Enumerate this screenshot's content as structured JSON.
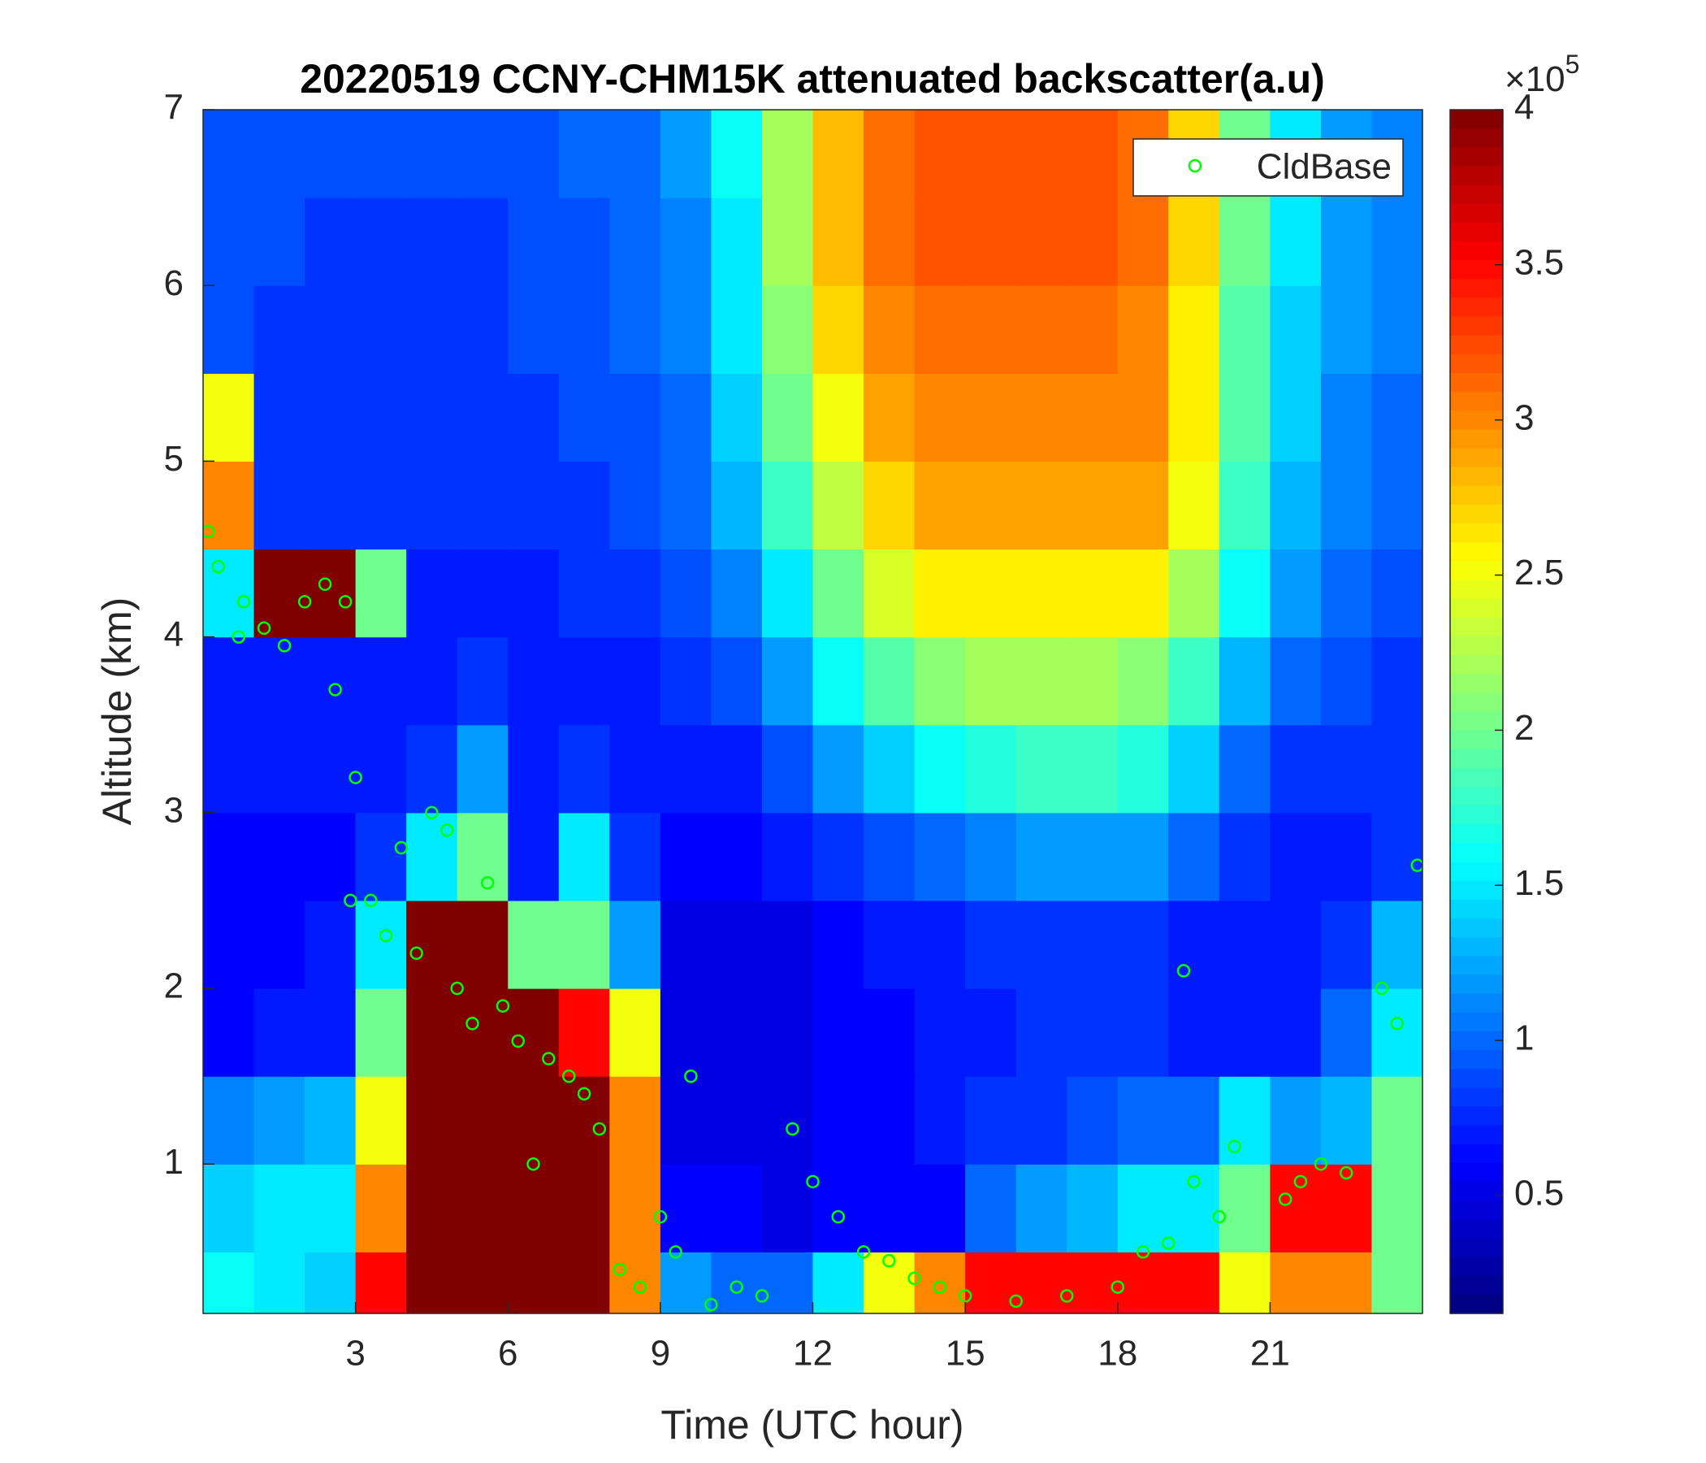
{
  "chart_data": {
    "type": "heatmap",
    "title": "20220519 CCNY-CHM15K attenuated backscatter(a.u)",
    "xlabel": "Time (UTC hour)",
    "ylabel": "Altitude (km)",
    "x": [
      0.5,
      1.5,
      2.5,
      3.5,
      4.5,
      5.5,
      6.5,
      7.5,
      8.5,
      9.5,
      10.5,
      11.5,
      12.5,
      13.5,
      14.5,
      15.5,
      16.5,
      17.5,
      18.5,
      19.5,
      20.5,
      21.5,
      22.5,
      23.5
    ],
    "y": [
      0.25,
      0.75,
      1.25,
      1.75,
      2.25,
      2.75,
      3.25,
      3.75,
      4.25,
      4.75,
      5.25,
      5.75,
      6.25,
      6.75
    ],
    "z": [
      [
        1.6,
        1.5,
        1.4,
        3.5,
        4,
        4,
        4,
        4,
        3,
        1.2,
        1,
        1,
        1.5,
        2.5,
        3,
        3.5,
        3.5,
        3.5,
        3.5,
        3.5,
        2.5,
        3,
        3,
        2
      ],
      [
        1.4,
        1.5,
        1.5,
        3,
        4,
        4,
        4,
        4,
        3,
        0.6,
        0.6,
        0.5,
        0.6,
        0.6,
        0.6,
        1,
        1.2,
        1.3,
        1.5,
        1.5,
        2,
        3.5,
        3.5,
        2
      ],
      [
        1.1,
        1.2,
        1.3,
        2.5,
        4,
        4,
        4,
        4,
        3,
        0.5,
        0.5,
        0.5,
        0.6,
        0.6,
        0.7,
        0.8,
        0.8,
        0.9,
        1,
        1,
        1.5,
        1.2,
        1.3,
        2
      ],
      [
        0.6,
        0.7,
        0.7,
        2,
        4,
        4,
        4,
        3.5,
        2.5,
        0.5,
        0.5,
        0.5,
        0.6,
        0.6,
        0.7,
        0.7,
        0.8,
        0.8,
        0.8,
        0.7,
        0.7,
        0.7,
        1,
        1.5
      ],
      [
        0.6,
        0.6,
        0.7,
        1.5,
        4,
        4,
        2,
        2,
        1.2,
        0.5,
        0.5,
        0.5,
        0.6,
        0.7,
        0.7,
        0.8,
        0.8,
        0.8,
        0.8,
        0.7,
        0.7,
        0.7,
        0.8,
        1.3
      ],
      [
        0.6,
        0.6,
        0.6,
        0.8,
        1.5,
        2,
        0.7,
        1.5,
        0.8,
        0.6,
        0.6,
        0.7,
        0.8,
        0.9,
        1,
        1.1,
        1.2,
        1.2,
        1.2,
        1,
        0.8,
        0.7,
        0.7,
        0.8
      ],
      [
        0.7,
        0.7,
        0.7,
        0.7,
        0.8,
        1.2,
        0.7,
        0.8,
        0.7,
        0.7,
        0.7,
        0.9,
        1.2,
        1.4,
        1.6,
        1.7,
        1.8,
        1.8,
        1.7,
        1.4,
        1,
        0.8,
        0.8,
        0.8
      ],
      [
        0.7,
        0.7,
        0.7,
        0.7,
        0.7,
        0.8,
        0.7,
        0.7,
        0.7,
        0.8,
        0.9,
        1.2,
        1.6,
        1.9,
        2.1,
        2.2,
        2.2,
        2.2,
        2.1,
        1.8,
        1.3,
        1,
        0.9,
        0.8
      ],
      [
        1.5,
        4,
        4,
        2,
        0.7,
        0.7,
        0.7,
        0.8,
        0.8,
        0.9,
        1.1,
        1.5,
        2,
        2.4,
        2.6,
        2.6,
        2.6,
        2.6,
        2.6,
        2.2,
        1.6,
        1.2,
        1,
        0.9
      ],
      [
        3,
        0.8,
        0.8,
        0.8,
        0.8,
        0.8,
        0.8,
        0.8,
        0.9,
        1,
        1.3,
        1.8,
        2.3,
        2.7,
        2.9,
        2.9,
        2.9,
        2.9,
        2.9,
        2.5,
        1.8,
        1.3,
        1.1,
        1
      ],
      [
        2.5,
        0.8,
        0.8,
        0.8,
        0.8,
        0.8,
        0.8,
        0.9,
        0.9,
        1,
        1.4,
        2,
        2.5,
        2.9,
        3,
        3,
        3,
        3,
        3,
        2.6,
        1.9,
        1.4,
        1.1,
        1
      ],
      [
        0.9,
        0.8,
        0.8,
        0.8,
        0.8,
        0.8,
        0.9,
        0.9,
        1,
        1.1,
        1.5,
        2.1,
        2.7,
        3,
        3.1,
        3.1,
        3.1,
        3.1,
        3,
        2.6,
        1.9,
        1.4,
        1.2,
        1.1
      ],
      [
        0.9,
        0.9,
        0.8,
        0.8,
        0.8,
        0.8,
        0.9,
        0.9,
        1,
        1.1,
        1.5,
        2.2,
        2.8,
        3.1,
        3.2,
        3.2,
        3.2,
        3.2,
        3.1,
        2.7,
        2,
        1.5,
        1.2,
        1.1
      ],
      [
        0.9,
        0.9,
        0.9,
        0.9,
        0.9,
        0.9,
        0.9,
        1,
        1,
        1.2,
        1.6,
        2.2,
        2.8,
        3.1,
        3.2,
        3.2,
        3.2,
        3.2,
        3.1,
        2.7,
        2,
        1.5,
        1.2,
        1.1
      ]
    ],
    "colormap": "jet",
    "clim": [
      0.12,
      4
    ],
    "cticks": [
      0.5,
      1,
      1.5,
      2,
      2.5,
      3,
      3.5,
      4
    ],
    "colorbar_multiplier": {
      "base": "×10",
      "exponent": "5"
    },
    "xlim": [
      0,
      24
    ],
    "xticks": [
      3,
      6,
      9,
      12,
      15,
      18,
      21
    ],
    "ylim": [
      0.15,
      7
    ],
    "yticks": [
      1,
      2,
      3,
      4,
      5,
      6,
      7
    ],
    "legend": "upper right",
    "series": [
      {
        "name": "CldBase",
        "type": "scatter",
        "color": "#00ff00",
        "x": [
          0.1,
          0.3,
          0.7,
          0.8,
          1.2,
          1.6,
          2,
          2.4,
          2.6,
          2.8,
          2.9,
          3,
          3.3,
          3.6,
          3.9,
          4.2,
          4.5,
          4.8,
          5,
          5.3,
          5.6,
          5.9,
          6.2,
          6.5,
          6.8,
          7.2,
          7.5,
          7.8,
          8.2,
          8.6,
          9,
          9.3,
          9.6,
          10,
          10.5,
          11,
          11.6,
          12,
          12.5,
          13,
          13.5,
          14,
          14.5,
          15,
          16,
          17,
          18,
          18.5,
          19,
          19.3,
          19.5,
          20,
          20.3,
          21.3,
          21.6,
          22,
          22.5,
          23.2,
          23.5,
          23.9
        ],
        "values": [
          4.6,
          4.4,
          4,
          4.2,
          4.05,
          3.95,
          4.2,
          4.3,
          3.7,
          4.2,
          2.5,
          3.2,
          2.5,
          2.3,
          2.8,
          2.2,
          3,
          2.9,
          2,
          1.8,
          2.6,
          1.9,
          1.7,
          1,
          1.6,
          1.5,
          1.4,
          1.2,
          0.4,
          0.3,
          0.7,
          0.5,
          1.5,
          0.2,
          0.3,
          0.25,
          1.2,
          0.9,
          0.7,
          0.5,
          0.45,
          0.35,
          0.3,
          0.25,
          0.22,
          0.25,
          0.3,
          0.5,
          0.55,
          2.1,
          0.9,
          0.7,
          1.1,
          0.8,
          0.9,
          1,
          0.95,
          2,
          1.8,
          2.7
        ]
      }
    ]
  }
}
